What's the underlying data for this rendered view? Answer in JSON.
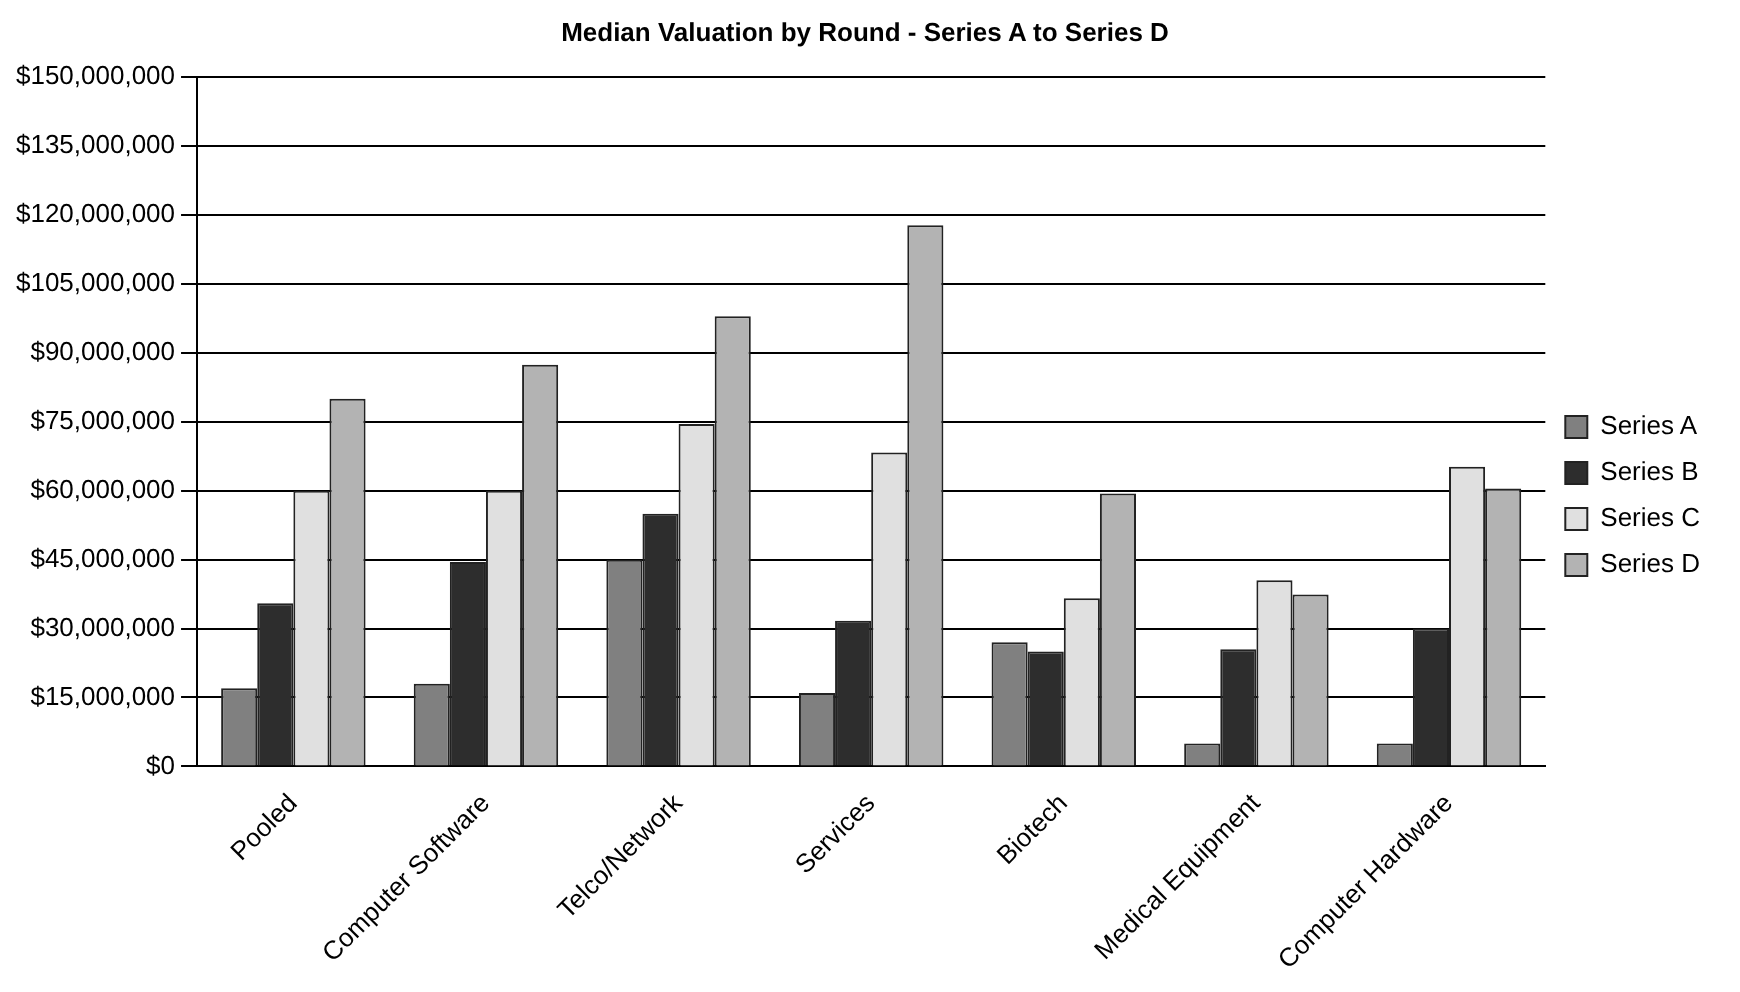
{
  "chart_data": {
    "type": "bar",
    "title": "Median Valuation by Round - Series A to Series D",
    "categories": [
      "Pooled",
      "Computer Software",
      "Telco/Network",
      "Services",
      "Biotech",
      "Medical Equipment",
      "Computer Hardware"
    ],
    "series": [
      {
        "name": "Series A",
        "color": "#808080",
        "values": [
          17000000,
          18000000,
          45000000,
          16000000,
          27000000,
          5000000,
          5000000
        ]
      },
      {
        "name": "Series B",
        "color": "#2d2d2d",
        "values": [
          35500000,
          44500000,
          55000000,
          31700000,
          25000000,
          25500000,
          30000000
        ]
      },
      {
        "name": "Series C",
        "color": "#e0e0e0",
        "values": [
          60000000,
          60000000,
          74500000,
          68300000,
          36600000,
          40500000,
          65200000
        ]
      },
      {
        "name": "Series D",
        "color": "#b3b3b3",
        "values": [
          80000000,
          87400000,
          98000000,
          117800000,
          59400000,
          37400000,
          60500000
        ]
      }
    ],
    "ylim": [
      0,
      150000000
    ],
    "yticks": [
      {
        "value": 0,
        "label": "$0"
      },
      {
        "value": 15000000,
        "label": "$15,000,000"
      },
      {
        "value": 30000000,
        "label": "$30,000,000"
      },
      {
        "value": 45000000,
        "label": "$45,000,000"
      },
      {
        "value": 60000000,
        "label": "$60,000,000"
      },
      {
        "value": 75000000,
        "label": "$75,000,000"
      },
      {
        "value": 90000000,
        "label": "$90,000,000"
      },
      {
        "value": 105000000,
        "label": "$105,000,000"
      },
      {
        "value": 120000000,
        "label": "$120,000,000"
      },
      {
        "value": 135000000,
        "label": "$135,000,000"
      },
      {
        "value": 150000000,
        "label": "$150,000,000"
      }
    ],
    "grid": "y",
    "legend": "right"
  }
}
